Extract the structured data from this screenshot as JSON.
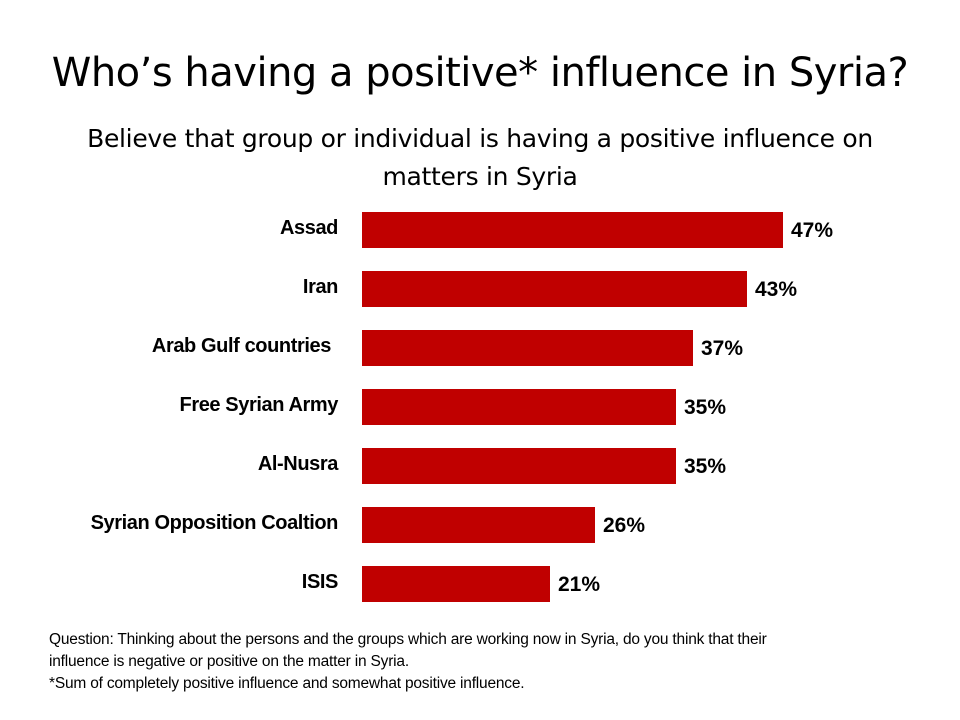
{
  "title": "Who’s having a positive* influence in Syria?",
  "subtitle": "Believe that group or individual is having a positive influence on matters in Syria",
  "bar_color": "#c00000",
  "chart_data": {
    "type": "bar",
    "orientation": "horizontal",
    "title": "Who’s having a positive* influence in Syria?",
    "subtitle": "Believe that group or individual is having a positive influence on matters in Syria",
    "xlabel": "",
    "ylabel": "",
    "grid": false,
    "legend": null,
    "categories": [
      "Assad",
      "Iran",
      "Arab Gulf countries",
      "Free Syrian Army",
      "Al-Nusra",
      "Syrian Opposition Coaltion",
      "ISIS"
    ],
    "values": [
      47,
      43,
      37,
      35,
      35,
      26,
      21
    ],
    "value_labels": [
      "47%",
      "43%",
      "37%",
      "35%",
      "35%",
      "26%",
      "21%"
    ],
    "unit": "%"
  },
  "rows": [
    {
      "label": "Assad",
      "value": "47%"
    },
    {
      "label": "Iran",
      "value": "43%"
    },
    {
      "label": "Arab Gulf countries",
      "value": "37%"
    },
    {
      "label": "Free Syrian Army",
      "value": "35%"
    },
    {
      "label": "Al-Nusra",
      "value": "35%"
    },
    {
      "label": "Syrian Opposition Coaltion",
      "value": "26%"
    },
    {
      "label": "ISIS",
      "value": "21%"
    }
  ],
  "footnote": {
    "line1": "Question: Thinking about the persons and the groups which are working now in Syria, do you think that their",
    "line2": "influence is negative or positive on the matter in Syria.",
    "line3": "*Sum of completely positive influence and somewhat positive influence."
  }
}
